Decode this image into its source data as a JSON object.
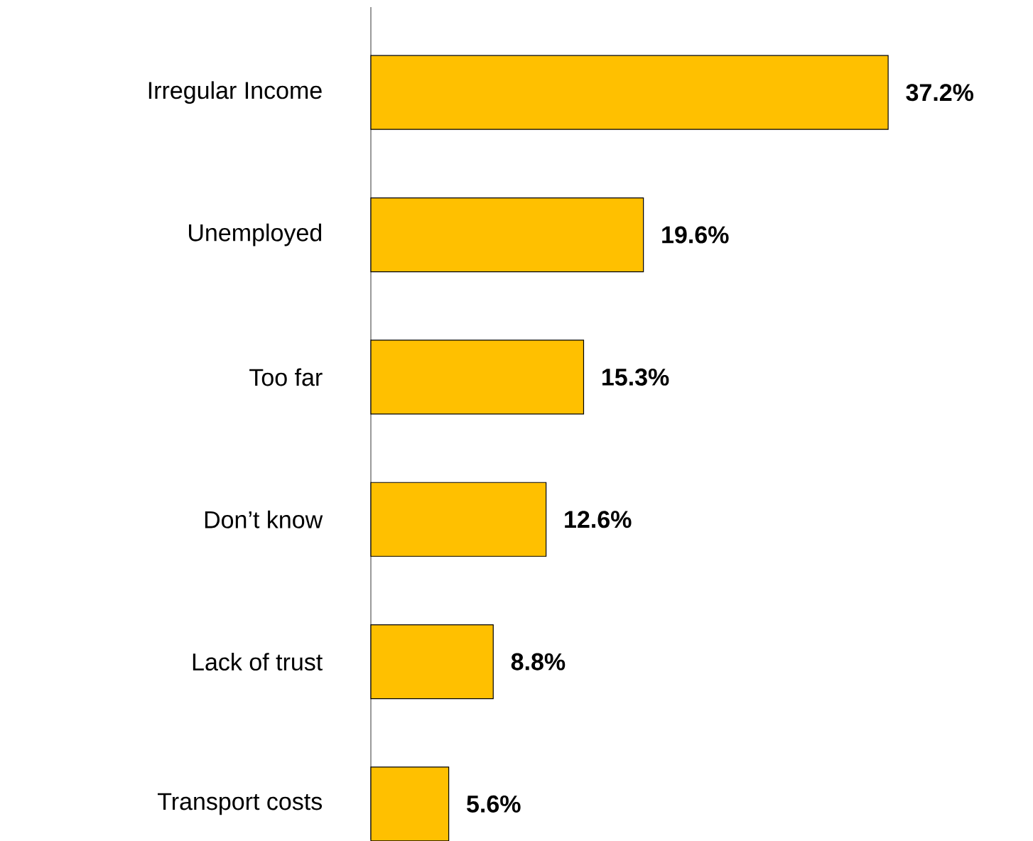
{
  "chart_data": {
    "type": "bar",
    "orientation": "horizontal",
    "categories": [
      "Irregular Income",
      "Unemployed",
      "Too far",
      "Don’t know",
      "Lack of trust",
      "Transport costs"
    ],
    "values": [
      37.2,
      19.6,
      15.3,
      12.6,
      8.8,
      5.6
    ],
    "value_labels": [
      "37.2%",
      "19.6%",
      "15.3%",
      "12.6%",
      "8.8%",
      "5.6%"
    ],
    "color": "#ffc000",
    "tick_labels": "y"
  }
}
